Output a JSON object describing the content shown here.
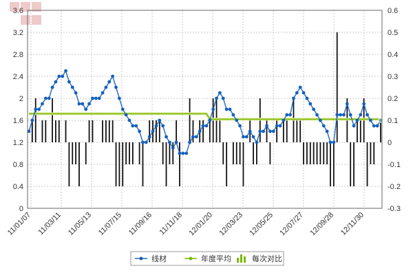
{
  "colors": {
    "price_line": "#2a6fc2",
    "price_marker": "#1560bd",
    "avg_line": "#7ab800",
    "avg_line_outer": "#ddeaa0",
    "bars": "#111111",
    "grid": "#c8c8c8",
    "axis": "#666666",
    "last_point": "#5aa0a0"
  },
  "legend": [
    {
      "label": "线材",
      "icon": "line-with-dot-icon"
    },
    {
      "label": "年度平均",
      "icon": "line-with-dot-icon"
    },
    {
      "label": "每次对比",
      "icon": "bar-chart-icon"
    }
  ],
  "chart_data": {
    "type": "line",
    "left_axis": {
      "min": 0,
      "max": 3.6,
      "ticks": [
        "0",
        "0.4",
        "0.8",
        "1.2",
        "1.6",
        "2",
        "2.4",
        "2.8",
        "3.2",
        "3.6"
      ]
    },
    "right_axis": {
      "min": -0.3,
      "max": 0.6,
      "ticks": [
        "-0.3",
        "-0.2",
        "-0.1",
        "0",
        "0.1",
        "0.2",
        "0.3",
        "0.4",
        "0.5",
        "0.6"
      ]
    },
    "x_tick_labels": [
      "11/01/07",
      "11/03/11",
      "11/05/13",
      "11/07/15",
      "11/09/16",
      "11/11/18",
      "12/01/20",
      "12/03/23",
      "12/05/25",
      "12/07/27",
      "12/09/28",
      "12/11/30"
    ],
    "grid": true,
    "legend_position": "bottom",
    "series": [
      {
        "name": "线材",
        "axis": "left",
        "values": [
          1.4,
          1.6,
          1.8,
          1.8,
          1.9,
          2.0,
          2.0,
          2.2,
          2.3,
          2.4,
          2.4,
          2.5,
          2.3,
          2.2,
          2.1,
          1.9,
          1.9,
          1.8,
          1.9,
          2.0,
          2.0,
          2.0,
          2.1,
          2.2,
          2.3,
          2.4,
          2.2,
          2.0,
          1.8,
          1.7,
          1.6,
          1.5,
          1.5,
          1.4,
          1.2,
          1.2,
          1.3,
          1.4,
          1.5,
          1.6,
          1.5,
          1.3,
          1.2,
          1.1,
          1.2,
          1.0,
          1.0,
          1.0,
          1.2,
          1.3,
          1.3,
          1.4,
          1.5,
          1.5,
          1.6,
          1.8,
          2.0,
          2.1,
          2.0,
          1.8,
          1.8,
          1.7,
          1.6,
          1.5,
          1.3,
          1.3,
          1.4,
          1.3,
          1.2,
          1.4,
          1.4,
          1.5,
          1.4,
          1.4,
          1.5,
          1.5,
          1.6,
          1.7,
          1.7,
          2.0,
          2.1,
          2.2,
          2.1,
          2.0,
          1.9,
          1.8,
          1.7,
          1.6,
          1.5,
          1.4,
          1.2,
          1.2,
          1.7,
          1.7,
          1.7,
          1.9,
          1.7,
          1.5,
          1.6,
          1.7,
          1.9,
          1.7,
          1.6,
          1.5,
          1.5,
          1.6
        ]
      },
      {
        "name": "年度平均",
        "axis": "left",
        "values": [
          1.72,
          1.72,
          1.72,
          1.72,
          1.72,
          1.72,
          1.72,
          1.72,
          1.72,
          1.72,
          1.72,
          1.72,
          1.72,
          1.72,
          1.72,
          1.72,
          1.72,
          1.72,
          1.72,
          1.72,
          1.72,
          1.72,
          1.72,
          1.72,
          1.72,
          1.72,
          1.72,
          1.72,
          1.72,
          1.72,
          1.72,
          1.72,
          1.72,
          1.72,
          1.72,
          1.72,
          1.72,
          1.72,
          1.72,
          1.72,
          1.72,
          1.72,
          1.72,
          1.72,
          1.72,
          1.72,
          1.72,
          1.72,
          1.72,
          1.72,
          1.72,
          1.72,
          1.72,
          1.72,
          1.62,
          1.62,
          1.62,
          1.62,
          1.62,
          1.62,
          1.62,
          1.62,
          1.62,
          1.62,
          1.62,
          1.62,
          1.62,
          1.62,
          1.62,
          1.62,
          1.62,
          1.62,
          1.62,
          1.62,
          1.62,
          1.62,
          1.62,
          1.62,
          1.62,
          1.62,
          1.62,
          1.62,
          1.62,
          1.62,
          1.62,
          1.62,
          1.62,
          1.62,
          1.62,
          1.62,
          1.62,
          1.62,
          1.62,
          1.62,
          1.62,
          1.62,
          1.62,
          1.62,
          1.62,
          1.62,
          1.62,
          1.62,
          1.62,
          1.62,
          1.62,
          1.62
        ]
      },
      {
        "name": "每次对比",
        "axis": "right",
        "type": "bar",
        "values": [
          0,
          0.1,
          0.2,
          0,
          0.1,
          0.1,
          0,
          0.2,
          0.1,
          0.1,
          0,
          0.1,
          -0.2,
          -0.1,
          -0.1,
          -0.2,
          0,
          -0.1,
          0.1,
          0.1,
          0,
          0,
          0.1,
          0.1,
          0.1,
          0.1,
          -0.2,
          -0.2,
          -0.2,
          -0.1,
          -0.1,
          -0.1,
          0,
          -0.1,
          -0.2,
          0,
          0.1,
          0.1,
          0.1,
          0.1,
          -0.1,
          -0.2,
          -0.1,
          -0.1,
          0.1,
          -0.2,
          0,
          0,
          0.2,
          0.1,
          0,
          0.1,
          0.1,
          0,
          0.1,
          0.2,
          0.2,
          0.1,
          -0.1,
          -0.2,
          0,
          -0.1,
          -0.1,
          -0.1,
          -0.2,
          0,
          0.1,
          -0.1,
          -0.1,
          0.2,
          0,
          0.1,
          -0.1,
          0,
          0.1,
          0,
          0.1,
          0.1,
          0,
          0.2,
          0.1,
          0.1,
          -0.1,
          -0.1,
          -0.1,
          -0.1,
          -0.1,
          -0.1,
          -0.1,
          -0.1,
          -0.2,
          -0.2,
          0.5,
          0,
          0,
          0.2,
          -0.2,
          -0.2,
          0.1,
          0.1,
          0.2,
          -0.2,
          -0.1,
          -0.1,
          0,
          0.1
        ]
      }
    ]
  }
}
